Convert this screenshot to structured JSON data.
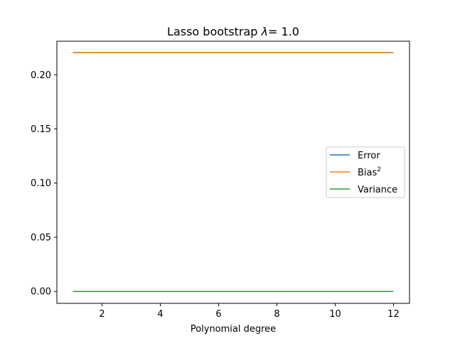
{
  "chart_data": {
    "type": "line",
    "title_prefix": "Lasso bootstrap ",
    "title_symbol": "λ",
    "title_suffix": "= 1.0",
    "xlabel": "Polynomial degree",
    "ylabel": "",
    "xlim": [
      0.45,
      12.55
    ],
    "ylim": [
      -0.011,
      0.231
    ],
    "xticks": [
      2,
      4,
      6,
      8,
      10,
      12
    ],
    "xtick_labels": [
      "2",
      "4",
      "6",
      "8",
      "10",
      "12"
    ],
    "yticks": [
      0.0,
      0.05,
      0.1,
      0.15,
      0.2
    ],
    "ytick_labels": [
      "0.00",
      "0.05",
      "0.10",
      "0.15",
      "0.20"
    ],
    "x": [
      1,
      2,
      3,
      4,
      5,
      6,
      7,
      8,
      9,
      10,
      11,
      12
    ],
    "series": [
      {
        "name": "Error",
        "legend_text": "Error",
        "legend_sup": "",
        "color": "#1f77b4",
        "values": [
          0.2205,
          0.2205,
          0.2205,
          0.2205,
          0.2205,
          0.2205,
          0.2205,
          0.2205,
          0.2205,
          0.2205,
          0.2205,
          0.2205
        ]
      },
      {
        "name": "Bias^2",
        "legend_text": "Bias",
        "legend_sup": "2",
        "color": "#ff7f0e",
        "values": [
          0.2205,
          0.2205,
          0.2205,
          0.2205,
          0.2205,
          0.2205,
          0.2205,
          0.2205,
          0.2205,
          0.2205,
          0.2205,
          0.2205
        ]
      },
      {
        "name": "Variance",
        "legend_text": "Variance",
        "legend_sup": "",
        "color": "#2ca02c",
        "values": [
          0.0,
          0.0,
          0.0,
          0.0,
          0.0,
          0.0,
          0.0,
          0.0,
          0.0,
          0.0,
          0.0,
          0.0
        ]
      }
    ],
    "legend_position": "center-right",
    "grid": false
  }
}
